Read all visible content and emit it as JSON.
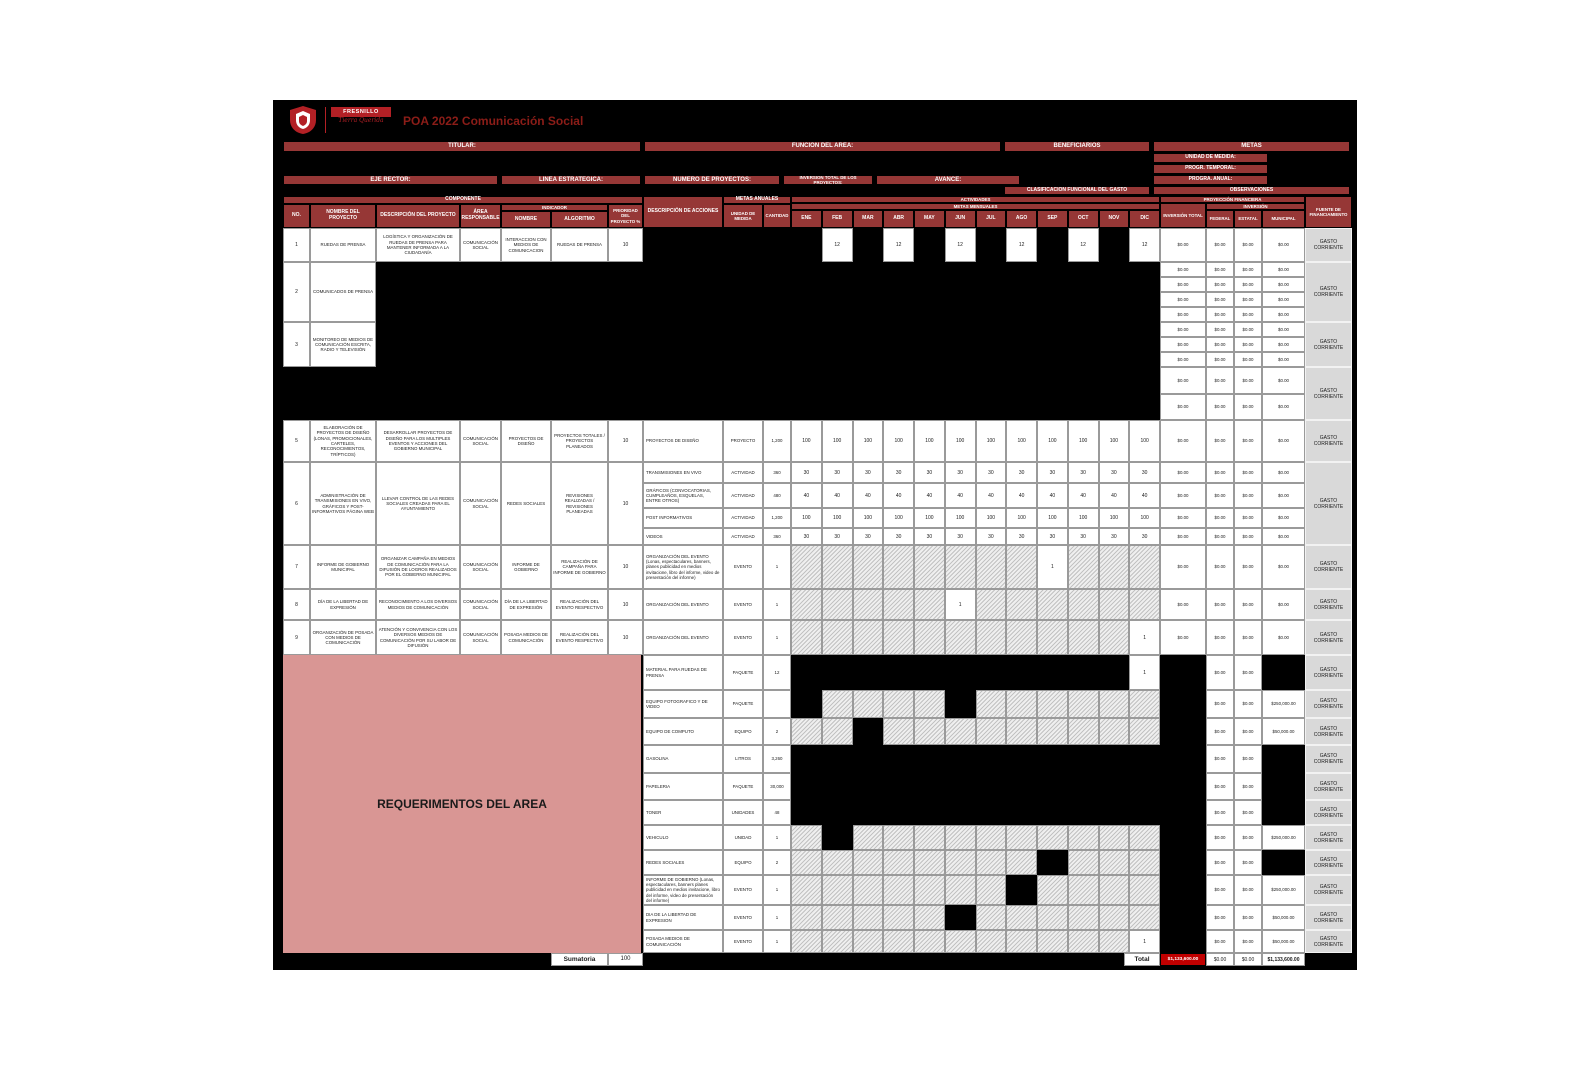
{
  "title": "POA 2022 Comunicación Social",
  "logo": {
    "name": "FRESNILLO",
    "tagline": "Tierra Querida"
  },
  "info_labels": {
    "titular": "TITULAR:",
    "funcion": "FUNCION DEL AREA:",
    "beneficiarios": "BENEFICIARIOS",
    "metas": "METAS",
    "unidad_medida": "UNIDAD DE MEDIDA:",
    "progr_temporal": "PROGR. TEMPORAL:",
    "eje_rector": "EJE RECTOR:",
    "linea_estrategica": "LINEA ESTRATEGICA:",
    "numero_proyectos": "NUMERO DE PROYECTOS:",
    "inversion_total": "INVERSION TOTAL DE LOS PROYECTOS:",
    "avance": "AVANCE:",
    "progra_anual": "PROGRA. ANUAL:",
    "clasificacion": "CLASIFICACION FUNCIONAL DEL GASTO",
    "observaciones": "OBSERVACIONES"
  },
  "table_header": {
    "componente": "COMPONENTE",
    "no": "NO.",
    "nombre_proyecto": "NOMBRE DEL PROYECTO",
    "descripcion_proyecto": "DESCRIPCIÓN DEL PROYECTO",
    "area_responsable": "ÁREA RESPONSABLE",
    "indicador": "INDICADOR",
    "nombre": "NOMBRE",
    "algoritmo": "ALGORITMO",
    "prioridad": "PRIORIDAD DEL PROYECTO %",
    "descripcion_acciones": "DESCRIPCIÓN DE ACCIONES",
    "metas_anuales": "METAS ANUALES",
    "unidad_medida": "UNIDAD DE MEDIDA",
    "cantidad": "CANTIDAD",
    "actividades": "ACTIVIDADES",
    "metas_mensuales": "METAS MENSUALES",
    "months": [
      "ENE",
      "FEB",
      "MAR",
      "ABR",
      "MAY",
      "JUN",
      "JUL",
      "AGO",
      "SEP",
      "OCT",
      "NOV",
      "DIC"
    ],
    "proyeccion_financiera": "PROYECCIÓN FINANCIERA",
    "inversion": "INVERSIÓN",
    "inversion_total": "INVERSIÓN TOTAL",
    "federal": "FEDERAL",
    "estatal": "ESTATAL",
    "municipal": "MUNICIPAL",
    "fuente": "FUENTE DE FINANCIAMIENTO"
  },
  "projects": [
    {
      "no": "1",
      "nombre": "RUEDAS DE PRENSA",
      "descripcion": "LOGÍSTICA Y ORGANIZACIÓN DE RUEDAS DE PRENSA PARA MANTENER INFORMADA A LA CIUDADANÍA",
      "area": "COMUNICACIÓN SOCIAL",
      "indicador": "INTERACCION CON MEDIOS DE COMUNICACION",
      "algoritmo": "RUEDAS DE PRENSA",
      "prioridad": "10",
      "fuente": "GASTO CORRIENTE",
      "acciones": [
        {
          "desc": null,
          "unidad": null,
          "cantidad": null,
          "months": [
            "BLACK",
            "12",
            "BLACK",
            "12",
            "BLACK",
            "12",
            "BLACK",
            "12",
            "BLACK",
            "12",
            "BLACK",
            "12"
          ],
          "money": [
            "$0.00",
            "$0.00",
            "$0.00",
            "$0.00"
          ]
        }
      ]
    },
    {
      "no": "2",
      "nombre": "COMUNICADOS DE PRENSA",
      "descripcion": null,
      "area": null,
      "indicador": null,
      "algoritmo": null,
      "prioridad": null,
      "fuente": "GASTO CORRIENTE",
      "acciones": [
        {
          "desc": null,
          "unidad": null,
          "cantidad": null,
          "months": null,
          "money": [
            "$0.00",
            "$0.00",
            "$0.00",
            "$0.00"
          ]
        },
        {
          "desc": null,
          "unidad": null,
          "cantidad": null,
          "months": null,
          "money": [
            "$0.00",
            "$0.00",
            "$0.00",
            "$0.00"
          ]
        },
        {
          "desc": null,
          "unidad": null,
          "cantidad": null,
          "months": null,
          "money": [
            "$0.00",
            "$0.00",
            "$0.00",
            "$0.00"
          ]
        },
        {
          "desc": null,
          "unidad": null,
          "cantidad": null,
          "months": null,
          "money": [
            "$0.00",
            "$0.00",
            "$0.00",
            "$0.00"
          ]
        }
      ]
    },
    {
      "no": "3",
      "nombre": "MONITOREO DE MEDIOS DE COMUNICACIÓN ESCRITA, RADIO Y TELEVISIÓN",
      "descripcion": null,
      "area": null,
      "indicador": null,
      "algoritmo": null,
      "prioridad": null,
      "fuente": "GASTO CORRIENTE",
      "acciones": [
        {
          "desc": null,
          "unidad": null,
          "cantidad": null,
          "months": null,
          "money": [
            "$0.00",
            "$0.00",
            "$0.00",
            "$0.00"
          ]
        },
        {
          "desc": null,
          "unidad": null,
          "cantidad": null,
          "months": null,
          "money": [
            "$0.00",
            "$0.00",
            "$0.00",
            "$0.00"
          ]
        },
        {
          "desc": null,
          "unidad": null,
          "cantidad": null,
          "months": null,
          "money": [
            "$0.00",
            "$0.00",
            "$0.00",
            "$0.00"
          ]
        }
      ]
    },
    {
      "no": null,
      "nombre": null,
      "descripcion": null,
      "area": null,
      "indicador": null,
      "algoritmo": null,
      "prioridad": null,
      "fuente": "GASTO CORRIENTE",
      "acciones": [
        {
          "desc": null,
          "unidad": null,
          "cantidad": null,
          "months": null,
          "money": [
            "$0.00",
            "$0.00",
            "$0.00",
            "$0.00"
          ]
        },
        {
          "desc": null,
          "unidad": null,
          "cantidad": null,
          "months": null,
          "money": [
            "$0.00",
            "$0.00",
            "$0.00",
            "$0.00"
          ]
        }
      ]
    },
    {
      "no": "5",
      "nombre": "ELABORACIÓN DE PROYECTOS DE DISEÑO (LONAS, PROMOCIONALES, CARTELES, RECONOCIMIENTOS, TRÍPTICOS)",
      "descripcion": "DESARROLLAR PROYECTOS DE DISEÑO PARA LOS MULTIPLES EVENTOS Y ACCIONES DEL GOBIERNO MUNICIPAL",
      "area": "COMUNICACIÓN SOCIAL",
      "indicador": "PROYECTOS DE DISEÑO",
      "algoritmo": "PROYECTOS TOTALES / PROYECTOS PLANEADOS",
      "prioridad": "10",
      "fuente": "GASTO CORRIENTE",
      "acciones": [
        {
          "desc": "PROYECTOS DE DISEÑO",
          "unidad": "PROYECTO",
          "cantidad": "1,200",
          "months": [
            "100",
            "100",
            "100",
            "100",
            "100",
            "100",
            "100",
            "100",
            "100",
            "100",
            "100",
            "100"
          ],
          "money": [
            "$0.00",
            "$0.00",
            "$0.00",
            "$0.00"
          ]
        }
      ]
    },
    {
      "no": "6",
      "nombre": "ADMINISTRACIÓN DE TRANSMISIONES EN VIVO, GRÁFICOS Y POST-INFORMATIVOS PÁGINA WEB",
      "descripcion": "LLEVAR CONTROL DE LAS REDES SOCIALES CREADAS PARA EL AYUNTAMIENTO",
      "area": "COMUNICACIÓN SOCIAL",
      "indicador": "REDES SOCIALES",
      "algoritmo": "REVISIONES REALIZADAS / REVISIONES PLANEADAS",
      "prioridad": "10",
      "fuente": "GASTO CORRIENTE",
      "acciones": [
        {
          "desc": "TRANSMISIONES EN VIVO",
          "unidad": "ACTIVIDAD",
          "cantidad": "360",
          "months": [
            "30",
            "30",
            "30",
            "30",
            "30",
            "30",
            "30",
            "30",
            "30",
            "30",
            "30",
            "30"
          ],
          "money": [
            "$0.00",
            "$0.00",
            "$0.00",
            "$0.00"
          ]
        },
        {
          "desc": "GRÁFICOS (CONVOCATORIAS, CUMPLEAÑOS, ESQUELAS, ENTRE OTROS)",
          "unidad": "ACTIVIDAD",
          "cantidad": "480",
          "months": [
            "40",
            "40",
            "40",
            "40",
            "40",
            "40",
            "40",
            "40",
            "40",
            "40",
            "40",
            "40"
          ],
          "money": [
            "$0.00",
            "$0.00",
            "$0.00",
            "$0.00"
          ]
        },
        {
          "desc": "POST INFORMATIVOS",
          "unidad": "ACTIVIDAD",
          "cantidad": "1,200",
          "months": [
            "100",
            "100",
            "100",
            "100",
            "100",
            "100",
            "100",
            "100",
            "100",
            "100",
            "100",
            "100"
          ],
          "money": [
            "$0.00",
            "$0.00",
            "$0.00",
            "$0.00"
          ]
        },
        {
          "desc": "VIDEOS",
          "unidad": "ACTIVIDAD",
          "cantidad": "360",
          "months": [
            "30",
            "30",
            "30",
            "30",
            "30",
            "30",
            "30",
            "30",
            "30",
            "30",
            "30",
            "30"
          ],
          "money": [
            "$0.00",
            "$0.00",
            "$0.00",
            "$0.00"
          ]
        }
      ]
    },
    {
      "no": "7",
      "nombre": "INFORME DE GOBIERNO MUNICIPAL",
      "descripcion": "ORGANIZAR CAMPAÑA EN MEDIOS DE COMUNICACIÓN PARA LA DIFUSIÓN DE LOGROS REALIZADOS POR EL GOBIERNO MUNICIPAL",
      "area": "COMUNICACIÓN SOCIAL",
      "indicador": "INFORME DE GOBIERNO",
      "algoritmo": "REALIZACIÓN DE CAMPAÑA PARA INFORME DE GOBIERNO",
      "prioridad": "10",
      "fuente": "GASTO CORRIENTE",
      "acciones": [
        {
          "desc": "ORGANIZACIÓN DEL EVENTO (Lonas, espectaculares, banners, planes publicidad en medios invitacione, libro del informe, video de presentación del informe)",
          "unidad": "EVENTO",
          "cantidad": "1",
          "months": [
            "HATCH",
            "HATCH",
            "HATCH",
            "HATCH",
            "HATCH",
            "HATCH",
            "HATCH",
            "HATCH",
            "1",
            "HATCH",
            "HATCH",
            "HATCH"
          ],
          "money": [
            "$0.00",
            "$0.00",
            "$0.00",
            "$0.00"
          ]
        }
      ]
    },
    {
      "no": "8",
      "nombre": "DÍA DE LA LIBERTAD DE EXPRESIÓN",
      "descripcion": "RECONOCIMIENTO A LOS DIVERSOS MEDIOS DE COMUNICACIÓN",
      "area": "COMUNICACIÓN SOCIAL",
      "indicador": "DÍA DE LA LIBERTAD DE EXPRESIÓN",
      "algoritmo": "REALIZACIÓN DEL EVENTO RESPECTIVO",
      "prioridad": "10",
      "fuente": "GASTO CORRIENTE",
      "acciones": [
        {
          "desc": "ORGANIZACIÓN DEL EVENTO",
          "unidad": "EVENTO",
          "cantidad": "1",
          "months": [
            "HATCH",
            "HATCH",
            "HATCH",
            "HATCH",
            "HATCH",
            "1",
            "HATCH",
            "HATCH",
            "HATCH",
            "HATCH",
            "HATCH",
            "HATCH"
          ],
          "money": [
            "$0.00",
            "$0.00",
            "$0.00",
            "$0.00"
          ]
        }
      ]
    },
    {
      "no": "9",
      "nombre": "ORGANIZACIÓN DE POSADA CON MEDIOS DE COMUNICACIÓN",
      "descripcion": "ATENCIÓN Y CONVIVENCIA CON LOS DIVERSOS MEDIOS DE COMUNICACIÓN POR SU LABOR DE DIFUSIÓN",
      "area": "COMUNICACIÓN SOCIAL",
      "indicador": "POSADA MEDIOS DE COMUNICACIÓN",
      "algoritmo": "REALIZACIÓN DEL EVENTO RESPECTIVO",
      "prioridad": "10",
      "fuente": "GASTO CORRIENTE",
      "acciones": [
        {
          "desc": "ORGANIZACIÓN DEL EVENTO",
          "unidad": "EVENTO",
          "cantidad": "1",
          "months": [
            "HATCH",
            "HATCH",
            "HATCH",
            "HATCH",
            "HATCH",
            "HATCH",
            "HATCH",
            "HATCH",
            "HATCH",
            "HATCH",
            "HATCH",
            "1"
          ],
          "money": [
            "$0.00",
            "$0.00",
            "$0.00",
            "$0.00"
          ]
        }
      ]
    }
  ],
  "requirements_label": "REQUERIMENTOS DEL AREA",
  "requirements": [
    {
      "desc": "MATERIAL PARA RUEDAS DE PRENSA",
      "unidad": "PAQUETE",
      "cantidad": "12",
      "months": [
        "BLACK",
        "BLACK",
        "BLACK",
        "BLACK",
        "BLACK",
        "BLACK",
        "BLACK",
        "BLACK",
        "BLACK",
        "BLACK",
        "BLACK",
        "1"
      ],
      "money": [
        "BLACK",
        "$0.00",
        "$0.00",
        "BLACK"
      ],
      "fuente": "GASTO CORRIENTE"
    },
    {
      "desc": "EQUIPO FOTOGRAFICO Y DE VIDEO",
      "unidad": "PAQUETE",
      "cantidad": "",
      "months": [
        "BLACK",
        "HATCH",
        "HATCH",
        "HATCH",
        "HATCH",
        "BLACK",
        "HATCH",
        "HATCH",
        "HATCH",
        "HATCH",
        "HATCH",
        "HATCH"
      ],
      "money": [
        "BLACK",
        "$0.00",
        "$0.00",
        "$250,000.00"
      ],
      "fuente": "GASTO CORRIENTE"
    },
    {
      "desc": "EQUIPO DE COMPUTO",
      "unidad": "EQUIPO",
      "cantidad": "2",
      "months": [
        "HATCH",
        "HATCH",
        "BLACK",
        "HATCH",
        "HATCH",
        "HATCH",
        "HATCH",
        "HATCH",
        "HATCH",
        "HATCH",
        "HATCH",
        "HATCH"
      ],
      "money": [
        "BLACK",
        "$0.00",
        "$0.00",
        "$50,000.00"
      ],
      "fuente": "GASTO CORRIENTE"
    },
    {
      "desc": "GASOLINA",
      "unidad": "LITROS",
      "cantidad": "3,260",
      "months": [
        "BLACK",
        "BLACK",
        "BLACK",
        "BLACK",
        "BLACK",
        "BLACK",
        "BLACK",
        "BLACK",
        "BLACK",
        "BLACK",
        "BLACK",
        "BLACK"
      ],
      "money": [
        "BLACK",
        "$0.00",
        "$0.00",
        "BLACK"
      ],
      "fuente": "GASTO CORRIENTE"
    },
    {
      "desc": "PAPELERIA",
      "unidad": "PAQUETE",
      "cantidad": "30,000",
      "months": [
        "BLACK",
        "BLACK",
        "BLACK",
        "BLACK",
        "BLACK",
        "BLACK",
        "BLACK",
        "BLACK",
        "BLACK",
        "BLACK",
        "BLACK",
        "BLACK"
      ],
      "money": [
        "BLACK",
        "$0.00",
        "$0.00",
        "BLACK"
      ],
      "fuente": "GASTO CORRIENTE"
    },
    {
      "desc": "TONER",
      "unidad": "UNIDADES",
      "cantidad": "48",
      "months": [
        "BLACK",
        "BLACK",
        "BLACK",
        "BLACK",
        "BLACK",
        "BLACK",
        "BLACK",
        "BLACK",
        "BLACK",
        "BLACK",
        "BLACK",
        "BLACK"
      ],
      "money": [
        "BLACK",
        "$0.00",
        "$0.00",
        "BLACK"
      ],
      "fuente": "GASTO CORRIENTE"
    },
    {
      "desc": "VEHICULO",
      "unidad": "UNIDAD",
      "cantidad": "1",
      "months": [
        "HATCH",
        "BLACK",
        "HATCH",
        "HATCH",
        "HATCH",
        "HATCH",
        "HATCH",
        "HATCH",
        "HATCH",
        "HATCH",
        "HATCH",
        "HATCH"
      ],
      "money": [
        "BLACK",
        "$0.00",
        "$0.00",
        "$250,000.00"
      ],
      "fuente": "GASTO CORRIENTE"
    },
    {
      "desc": "REDES SOCIALES",
      "unidad": "EQUIPO",
      "cantidad": "2",
      "months": [
        "HATCH",
        "HATCH",
        "HATCH",
        "HATCH",
        "HATCH",
        "HATCH",
        "HATCH",
        "HATCH",
        "BLACK",
        "HATCH",
        "HATCH",
        "HATCH"
      ],
      "money": [
        "BLACK",
        "$0.00",
        "$0.00",
        "BLACK"
      ],
      "fuente": "GASTO CORRIENTE"
    },
    {
      "desc": "INFORME DE GOBIERNO (Lonas, espectaculares, banners planes publicidad en medios invitacione, libro del informe, video de presentación del informe)",
      "unidad": "EVENTO",
      "cantidad": "1",
      "months": [
        "HATCH",
        "HATCH",
        "HATCH",
        "HATCH",
        "HATCH",
        "HATCH",
        "HATCH",
        "BLACK",
        "HATCH",
        "HATCH",
        "HATCH",
        "HATCH"
      ],
      "money": [
        "BLACK",
        "$0.00",
        "$0.00",
        "$250,000.00"
      ],
      "fuente": "GASTO CORRIENTE"
    },
    {
      "desc": "DIA DE LA LIBERTAD DE EXPRESION",
      "unidad": "EVENTO",
      "cantidad": "1",
      "months": [
        "HATCH",
        "HATCH",
        "HATCH",
        "HATCH",
        "HATCH",
        "BLACK",
        "HATCH",
        "HATCH",
        "HATCH",
        "HATCH",
        "HATCH",
        "HATCH"
      ],
      "money": [
        "BLACK",
        "$0.00",
        "$0.00",
        "$50,000.00"
      ],
      "fuente": "GASTO CORRIENTE"
    },
    {
      "desc": "POSADA MEDIOS DE COMUNICACIÓN",
      "unidad": "EVENTO",
      "cantidad": "1",
      "months": [
        "HATCH",
        "HATCH",
        "HATCH",
        "HATCH",
        "HATCH",
        "HATCH",
        "HATCH",
        "HATCH",
        "HATCH",
        "HATCH",
        "HATCH",
        "1"
      ],
      "money": [
        "BLACK",
        "$0.00",
        "$0.00",
        "$50,000.00"
      ],
      "fuente": "GASTO CORRIENTE"
    }
  ],
  "footer": {
    "sumatoria_label": "Sumatoria",
    "sumatoria_value": "100",
    "total_label": "Total",
    "total_inversion": "$1,133,600.00",
    "total_federal": "$0.00",
    "total_estatal": "$0.00",
    "total_municipal": "$1,133,600.00"
  }
}
